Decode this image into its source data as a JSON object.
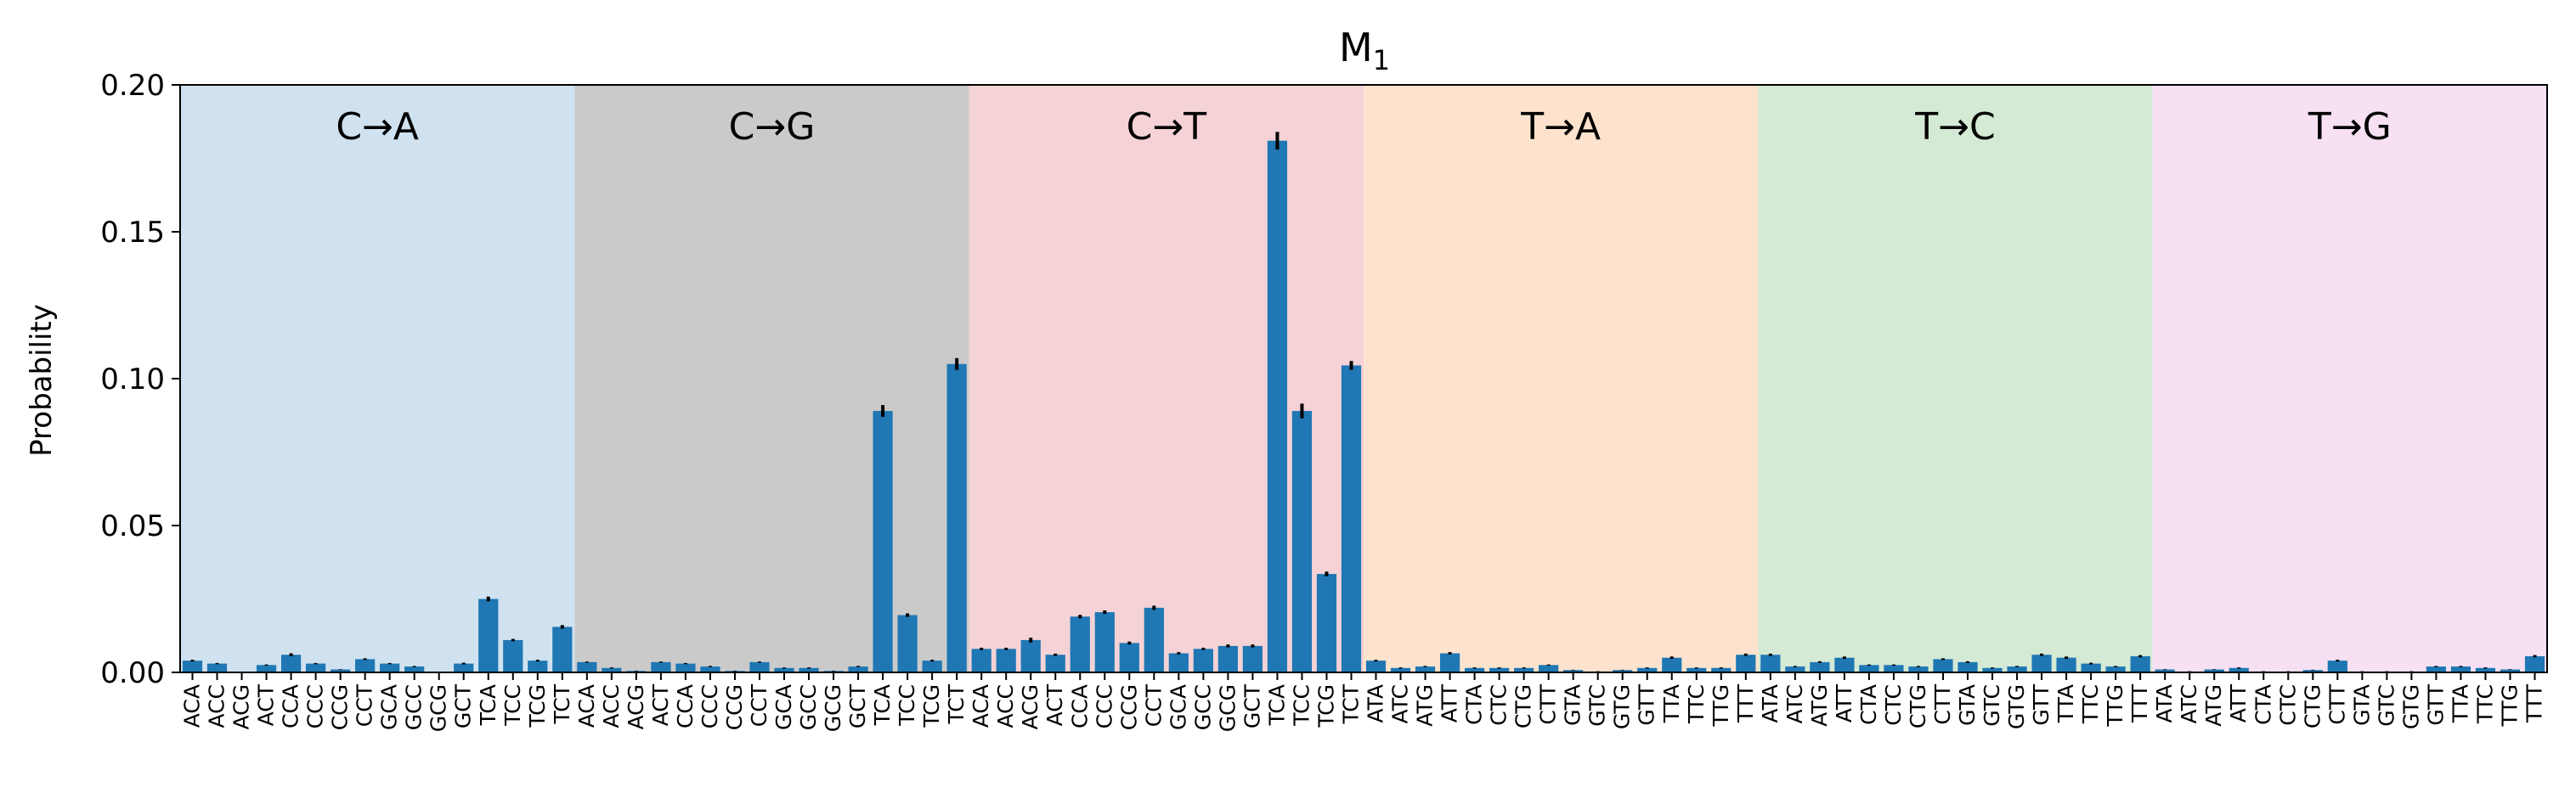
{
  "chart_data": {
    "type": "bar",
    "title": "M",
    "title_subscript": "1",
    "ylabel": "Probability",
    "xlabel": "",
    "ylim": [
      0,
      0.2
    ],
    "yticks": [
      "0.00",
      "0.05",
      "0.10",
      "0.15",
      "0.20"
    ],
    "bar_color": "#1f77b4",
    "error_color": "#000000",
    "groups": [
      {
        "label": "C→A",
        "color": "#d0e2ef",
        "contexts": [
          "ACA",
          "ACC",
          "ACG",
          "ACT",
          "CCA",
          "CCC",
          "CCG",
          "CCT",
          "GCA",
          "GCC",
          "GCG",
          "GCT",
          "TCA",
          "TCC",
          "TCG",
          "TCT"
        ],
        "values": [
          0.004,
          0.003,
          0.0001,
          0.0025,
          0.006,
          0.003,
          0.001,
          0.0045,
          0.003,
          0.002,
          0.0001,
          0.003,
          0.025,
          0.011,
          0.004,
          0.0155
        ],
        "errors": [
          0.0003,
          0.0002,
          0.0001,
          0.0002,
          0.0005,
          0.0002,
          0.0001,
          0.0003,
          0.0002,
          0.0002,
          0.0001,
          0.0003,
          0.0008,
          0.0004,
          0.0003,
          0.0006
        ]
      },
      {
        "label": "C→G",
        "color": "#cacaca",
        "contexts": [
          "ACA",
          "ACC",
          "ACG",
          "ACT",
          "CCA",
          "CCC",
          "CCG",
          "CCT",
          "GCA",
          "GCC",
          "GCG",
          "GCT",
          "TCA",
          "TCC",
          "TCG",
          "TCT"
        ],
        "values": [
          0.0035,
          0.0015,
          0.0005,
          0.0035,
          0.003,
          0.002,
          0.0005,
          0.0035,
          0.0015,
          0.0015,
          0.0005,
          0.002,
          0.089,
          0.0195,
          0.004,
          0.105
        ],
        "errors": [
          0.0002,
          0.0002,
          0.0001,
          0.0002,
          0.0002,
          0.0002,
          0.0001,
          0.0002,
          0.0002,
          0.0002,
          0.0001,
          0.0002,
          0.002,
          0.0006,
          0.0003,
          0.002
        ]
      },
      {
        "label": "C→T",
        "color": "#f4d2d6",
        "contexts": [
          "ACA",
          "ACC",
          "ACG",
          "ACT",
          "CCA",
          "CCC",
          "CCG",
          "CCT",
          "GCA",
          "GCC",
          "GCG",
          "GCT",
          "TCA",
          "TCC",
          "TCG",
          "TCT"
        ],
        "values": [
          0.008,
          0.008,
          0.011,
          0.006,
          0.019,
          0.0205,
          0.01,
          0.022,
          0.0065,
          0.008,
          0.009,
          0.009,
          0.181,
          0.089,
          0.0335,
          0.1045
        ],
        "errors": [
          0.0004,
          0.0004,
          0.0008,
          0.0004,
          0.0006,
          0.0006,
          0.0005,
          0.0007,
          0.0004,
          0.0004,
          0.0005,
          0.0005,
          0.003,
          0.0025,
          0.0008,
          0.0015
        ]
      },
      {
        "label": "T→A",
        "color": "#fde3cd",
        "contexts": [
          "ATA",
          "ATC",
          "ATG",
          "ATT",
          "CTA",
          "CTC",
          "CTG",
          "CTT",
          "GTA",
          "GTC",
          "GTG",
          "GTT",
          "TTA",
          "TTC",
          "TTG",
          "TTT"
        ],
        "values": [
          0.004,
          0.0015,
          0.002,
          0.0065,
          0.0015,
          0.0015,
          0.0015,
          0.0025,
          0.0008,
          0.0003,
          0.0008,
          0.0015,
          0.005,
          0.0015,
          0.0015,
          0.006
        ],
        "errors": [
          0.0003,
          0.0002,
          0.0002,
          0.0004,
          0.0002,
          0.0002,
          0.0002,
          0.0002,
          0.0001,
          0.0001,
          0.0001,
          0.0002,
          0.0004,
          0.0002,
          0.0002,
          0.0004
        ]
      },
      {
        "label": "T→C",
        "color": "#d4ead5",
        "contexts": [
          "ATA",
          "ATC",
          "ATG",
          "ATT",
          "CTA",
          "CTC",
          "CTG",
          "CTT",
          "GTA",
          "GTC",
          "GTG",
          "GTT",
          "TTA",
          "TTC",
          "TTG",
          "TTT"
        ],
        "values": [
          0.006,
          0.002,
          0.0035,
          0.005,
          0.0025,
          0.0025,
          0.002,
          0.0045,
          0.0035,
          0.0015,
          0.002,
          0.006,
          0.005,
          0.003,
          0.002,
          0.0055
        ],
        "errors": [
          0.0004,
          0.0002,
          0.0003,
          0.0004,
          0.0002,
          0.0002,
          0.0002,
          0.0003,
          0.0003,
          0.0002,
          0.0002,
          0.0004,
          0.0004,
          0.0003,
          0.0002,
          0.0004
        ]
      },
      {
        "label": "T→G",
        "color": "#f6e0f2",
        "contexts": [
          "ATA",
          "ATC",
          "ATG",
          "ATT",
          "CTA",
          "CTC",
          "CTG",
          "CTT",
          "GTA",
          "GTC",
          "GTG",
          "GTT",
          "TTA",
          "TTC",
          "TTG",
          "TTT"
        ],
        "values": [
          0.001,
          0.0003,
          0.001,
          0.0015,
          0.0003,
          0.0003,
          0.0008,
          0.004,
          0.0003,
          0.0003,
          0.0003,
          0.002,
          0.002,
          0.0015,
          0.001,
          0.0055
        ],
        "errors": [
          0.0001,
          0.0001,
          0.0001,
          0.0002,
          0.0001,
          0.0001,
          0.0001,
          0.0003,
          0.0001,
          0.0001,
          0.0001,
          0.0002,
          0.0002,
          0.0002,
          0.0001,
          0.0004
        ]
      }
    ]
  }
}
